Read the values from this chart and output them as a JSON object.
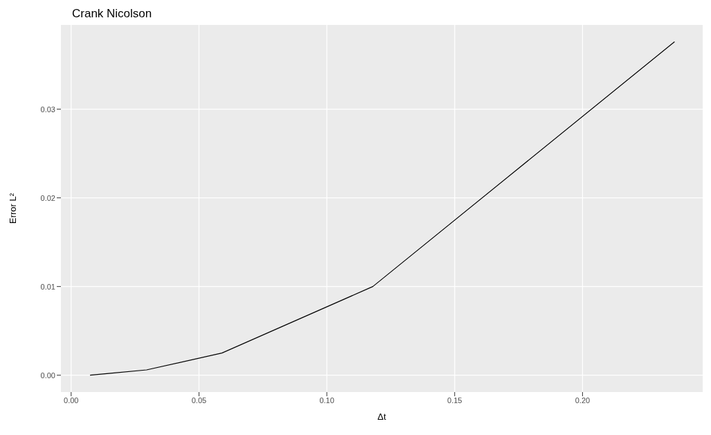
{
  "chart_data": {
    "type": "line",
    "title": "Crank Nicolson",
    "xlabel": "Δt",
    "ylabel": "Error L²",
    "x": [
      0.0074,
      0.0147,
      0.0295,
      0.059,
      0.118,
      0.236
    ],
    "series": [
      {
        "color": "#000000",
        "values": [
          0,
          0.0002,
          0.0006,
          0.0025,
          0.01,
          0.0376
        ]
      }
    ],
    "xlim": [
      -0.004,
      0.247
    ],
    "xticks": [
      {
        "value": 0,
        "label": "0.00"
      },
      {
        "value": 0.05,
        "label": "0.05"
      },
      {
        "value": 0.1,
        "label": "0.10"
      },
      {
        "value": 0.15,
        "label": "0.15"
      },
      {
        "value": 0.2,
        "label": "0.20"
      }
    ],
    "ylim": [
      -0.0019,
      0.0395
    ],
    "yticks": [
      {
        "value": 0,
        "label": "0.00"
      },
      {
        "value": 0.01,
        "label": "0.01"
      },
      {
        "value": 0.02,
        "label": "0.02"
      },
      {
        "value": 0.03,
        "label": "0.03"
      }
    ],
    "grid": true,
    "marker": "none",
    "line_style": "solid"
  }
}
